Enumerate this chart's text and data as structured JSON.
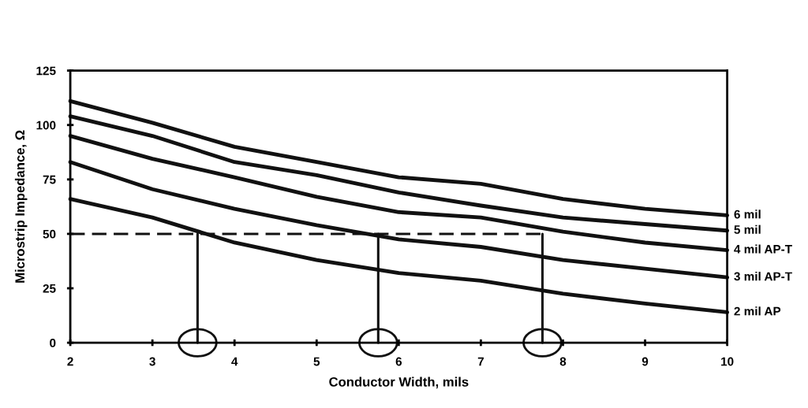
{
  "chart_data": {
    "type": "line",
    "xlabel": "Conductor Width, mils",
    "ylabel": "Microstrip Impedance, Ω",
    "x": [
      2,
      3,
      4,
      5,
      6,
      7,
      8,
      9,
      10
    ],
    "xlim": [
      2,
      10
    ],
    "xticks": [
      2,
      3,
      4,
      5,
      6,
      7,
      8,
      9,
      10
    ],
    "ylim": [
      0,
      125
    ],
    "yticks": [
      0,
      25,
      50,
      75,
      100,
      125
    ],
    "grid": false,
    "legend": false,
    "marker": "none",
    "series": [
      {
        "name": "6 mil",
        "color": "#111111",
        "values": [
          111,
          101,
          90,
          83,
          76,
          73,
          66,
          61.5,
          58.5
        ]
      },
      {
        "name": "5 mil",
        "color": "#111111",
        "values": [
          104,
          95,
          83,
          77,
          69,
          63,
          57.5,
          54.5,
          51.5
        ]
      },
      {
        "name": "4 mil AP-T",
        "color": "#111111",
        "values": [
          95,
          84.5,
          76,
          67,
          60,
          57.5,
          51,
          46,
          42.5
        ]
      },
      {
        "name": "3 mil AP-T",
        "color": "#111111",
        "values": [
          83,
          70.5,
          61.5,
          54,
          47.5,
          44,
          38,
          34,
          30
        ]
      },
      {
        "name": "2 mil AP",
        "color": "#111111",
        "values": [
          66,
          57.5,
          46,
          38,
          32,
          28.5,
          22.5,
          18,
          14
        ]
      },
      {
        "type": "line",
        "x": [
          2,
          7.75
        ],
        "values": [
          50,
          50
        ],
        "color": "#111111",
        "line_style": "dashed"
      },
      {
        "type": "line",
        "x": [
          3.55,
          3.55
        ],
        "values": [
          0,
          50
        ],
        "color": "#111111",
        "line_style": "solid"
      },
      {
        "type": "line",
        "x": [
          5.75,
          5.75
        ],
        "values": [
          0,
          50
        ],
        "color": "#111111",
        "line_style": "solid"
      },
      {
        "type": "line",
        "x": [
          7.75,
          7.75
        ],
        "values": [
          0,
          50
        ],
        "color": "#111111",
        "line_style": "solid"
      }
    ]
  }
}
